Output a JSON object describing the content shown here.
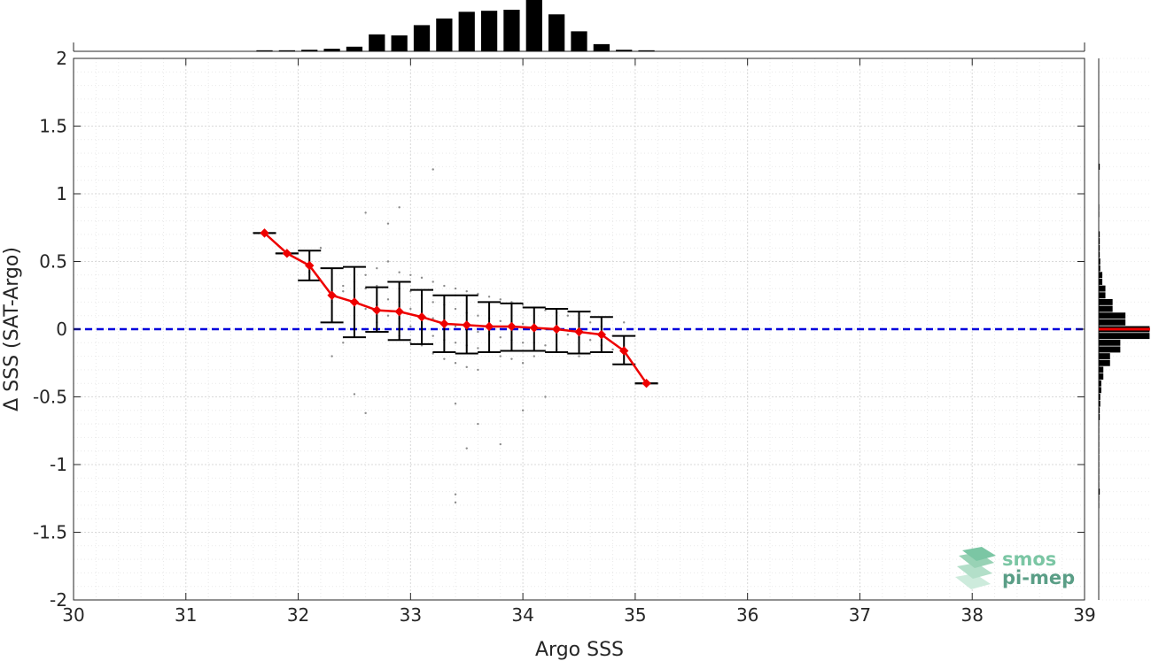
{
  "chart_data": {
    "type": "scatter",
    "xlabel": "Argo SSS",
    "ylabel": "Δ SSS (SAT-Argo)",
    "xlim": [
      30,
      39
    ],
    "ylim": [
      -2,
      2
    ],
    "xticks": [
      "30",
      "31",
      "32",
      "33",
      "34",
      "35",
      "36",
      "37",
      "38",
      "39"
    ],
    "yticks": [
      "-2",
      "-1.5",
      "-1",
      "-0.5",
      "0",
      "0.5",
      "1",
      "1.5",
      "2"
    ],
    "grid": true,
    "zero_line": {
      "y": 0,
      "style": "dashed",
      "color": "#0000dd"
    },
    "binned_mean": {
      "x": [
        31.7,
        31.9,
        32.1,
        32.3,
        32.5,
        32.7,
        32.9,
        33.1,
        33.3,
        33.5,
        33.7,
        33.9,
        34.1,
        34.3,
        34.5,
        34.7,
        34.9,
        35.1
      ],
      "mean": [
        0.71,
        0.56,
        0.47,
        0.25,
        0.2,
        0.14,
        0.13,
        0.09,
        0.04,
        0.03,
        0.02,
        0.02,
        0.01,
        0.0,
        -0.02,
        -0.04,
        -0.16,
        -0.4
      ],
      "lower": [
        0.71,
        0.56,
        0.36,
        0.05,
        -0.06,
        -0.02,
        -0.08,
        -0.11,
        -0.17,
        -0.18,
        -0.17,
        -0.16,
        -0.16,
        -0.17,
        -0.18,
        -0.17,
        -0.26,
        -0.4
      ],
      "upper": [
        0.71,
        0.56,
        0.58,
        0.45,
        0.46,
        0.31,
        0.35,
        0.29,
        0.25,
        0.25,
        0.2,
        0.19,
        0.16,
        0.15,
        0.13,
        0.09,
        -0.05,
        -0.4
      ],
      "line_color": "#ee0000",
      "errorbar_color": "#000000"
    },
    "scatter_cloud": {
      "color": "#8c8c8c",
      "points": [
        [
          32.1,
          0.42
        ],
        [
          32.2,
          0.6
        ],
        [
          32.3,
          0.2
        ],
        [
          32.4,
          0.32
        ],
        [
          32.4,
          0.28
        ],
        [
          32.5,
          0.35
        ],
        [
          32.5,
          0.25
        ],
        [
          32.5,
          0.1
        ],
        [
          32.6,
          0.4
        ],
        [
          32.6,
          0.3
        ],
        [
          32.6,
          0.15
        ],
        [
          32.7,
          0.45
        ],
        [
          32.7,
          0.32
        ],
        [
          32.7,
          0.18
        ],
        [
          32.7,
          0.05
        ],
        [
          32.8,
          0.5
        ],
        [
          32.8,
          0.35
        ],
        [
          32.8,
          0.22
        ],
        [
          32.8,
          0.1
        ],
        [
          32.8,
          -0.02
        ],
        [
          32.9,
          0.42
        ],
        [
          32.9,
          0.3
        ],
        [
          32.9,
          0.2
        ],
        [
          32.9,
          0.08
        ],
        [
          32.9,
          -0.05
        ],
        [
          33.0,
          0.4
        ],
        [
          33.0,
          0.28
        ],
        [
          33.0,
          0.15
        ],
        [
          33.0,
          0.02
        ],
        [
          33.0,
          -0.1
        ],
        [
          33.1,
          0.38
        ],
        [
          33.1,
          0.25
        ],
        [
          33.1,
          0.12
        ],
        [
          33.1,
          0.0
        ],
        [
          33.1,
          -0.12
        ],
        [
          33.2,
          0.35
        ],
        [
          33.2,
          0.2
        ],
        [
          33.2,
          0.08
        ],
        [
          33.2,
          -0.05
        ],
        [
          33.2,
          -0.18
        ],
        [
          33.3,
          0.32
        ],
        [
          33.3,
          0.18
        ],
        [
          33.3,
          0.05
        ],
        [
          33.3,
          -0.08
        ],
        [
          33.3,
          -0.22
        ],
        [
          33.4,
          0.3
        ],
        [
          33.4,
          0.15
        ],
        [
          33.4,
          0.02
        ],
        [
          33.4,
          -0.1
        ],
        [
          33.4,
          -0.25
        ],
        [
          33.5,
          0.28
        ],
        [
          33.5,
          0.12
        ],
        [
          33.5,
          0.0
        ],
        [
          33.5,
          -0.12
        ],
        [
          33.5,
          -0.28
        ],
        [
          33.6,
          0.26
        ],
        [
          33.6,
          0.1
        ],
        [
          33.6,
          -0.02
        ],
        [
          33.6,
          -0.14
        ],
        [
          33.6,
          -0.3
        ],
        [
          33.7,
          0.24
        ],
        [
          33.7,
          0.08
        ],
        [
          33.7,
          -0.04
        ],
        [
          33.7,
          -0.16
        ],
        [
          33.8,
          0.22
        ],
        [
          33.8,
          0.06
        ],
        [
          33.8,
          -0.06
        ],
        [
          33.8,
          -0.2
        ],
        [
          33.9,
          0.2
        ],
        [
          33.9,
          0.05
        ],
        [
          33.9,
          -0.08
        ],
        [
          33.9,
          -0.22
        ],
        [
          34.0,
          0.18
        ],
        [
          34.0,
          0.04
        ],
        [
          34.0,
          -0.1
        ],
        [
          34.0,
          -0.25
        ],
        [
          34.1,
          0.16
        ],
        [
          34.1,
          0.02
        ],
        [
          34.1,
          -0.1
        ],
        [
          34.1,
          -0.2
        ],
        [
          34.2,
          0.14
        ],
        [
          34.2,
          0.0
        ],
        [
          34.2,
          -0.12
        ],
        [
          34.3,
          0.12
        ],
        [
          34.3,
          -0.02
        ],
        [
          34.3,
          -0.15
        ],
        [
          34.4,
          0.1
        ],
        [
          34.4,
          -0.04
        ],
        [
          34.4,
          -0.18
        ],
        [
          34.5,
          0.08
        ],
        [
          34.5,
          -0.06
        ],
        [
          34.5,
          -0.2
        ],
        [
          34.6,
          0.05
        ],
        [
          34.6,
          -0.08
        ],
        [
          34.7,
          0.02
        ],
        [
          34.7,
          -0.12
        ],
        [
          34.8,
          -0.05
        ],
        [
          34.8,
          -0.15
        ],
        [
          32.6,
          0.86
        ],
        [
          32.8,
          0.78
        ],
        [
          32.9,
          0.9
        ],
        [
          33.2,
          1.18
        ],
        [
          32.5,
          -0.48
        ],
        [
          32.6,
          -0.62
        ],
        [
          33.4,
          -0.55
        ],
        [
          33.5,
          -0.88
        ],
        [
          33.6,
          -0.7
        ],
        [
          33.8,
          -0.85
        ],
        [
          33.4,
          -1.22
        ],
        [
          33.4,
          -1.28
        ],
        [
          34.0,
          -0.6
        ],
        [
          34.2,
          -0.5
        ],
        [
          32.3,
          -0.2
        ],
        [
          32.4,
          -0.1
        ],
        [
          34.9,
          0.05
        ]
      ]
    },
    "top_histogram": {
      "bin_centers": [
        31.7,
        31.9,
        32.1,
        32.3,
        32.5,
        32.7,
        32.9,
        33.1,
        33.3,
        33.5,
        33.7,
        33.9,
        34.1,
        34.3,
        34.5,
        34.7,
        34.9,
        35.1
      ],
      "relative_counts": [
        0.02,
        0.02,
        0.03,
        0.05,
        0.09,
        0.33,
        0.31,
        0.51,
        0.64,
        0.77,
        0.79,
        0.81,
        1.0,
        0.72,
        0.39,
        0.14,
        0.03,
        0.02
      ]
    },
    "right_histogram": {
      "bin_centers": [
        1.2,
        0.9,
        0.85,
        0.7,
        0.65,
        0.6,
        0.55,
        0.5,
        0.45,
        0.4,
        0.35,
        0.3,
        0.25,
        0.2,
        0.15,
        0.1,
        0.05,
        0.0,
        -0.05,
        -0.1,
        -0.15,
        -0.2,
        -0.25,
        -0.3,
        -0.35,
        -0.4,
        -0.45,
        -0.5,
        -0.55,
        -0.6,
        -0.65,
        -0.7,
        -0.75,
        -0.8,
        -0.85,
        -0.9,
        -0.95,
        -1.0,
        -1.05,
        -1.1,
        -1.15,
        -1.2,
        -1.25,
        -1.3
      ],
      "relative_counts": [
        0.02,
        0.01,
        0.01,
        0.02,
        0.02,
        0.02,
        0.02,
        0.03,
        0.03,
        0.07,
        0.07,
        0.13,
        0.13,
        0.27,
        0.27,
        0.52,
        0.52,
        0.99,
        0.99,
        0.42,
        0.42,
        0.22,
        0.22,
        0.09,
        0.09,
        0.05,
        0.05,
        0.03,
        0.03,
        0.02,
        0.02,
        0.01,
        0.01,
        0.01,
        0.01,
        0.01,
        0.01,
        0.01,
        0.01,
        0.01,
        0.01,
        0.02,
        0.01,
        0.01
      ],
      "mean_marker": {
        "y": 0.0,
        "color": "#ee0000"
      }
    }
  },
  "logo": {
    "line1": "smos",
    "line2": "pi-mep",
    "color1": "#7bc6a4",
    "color2": "#5a9e86"
  }
}
